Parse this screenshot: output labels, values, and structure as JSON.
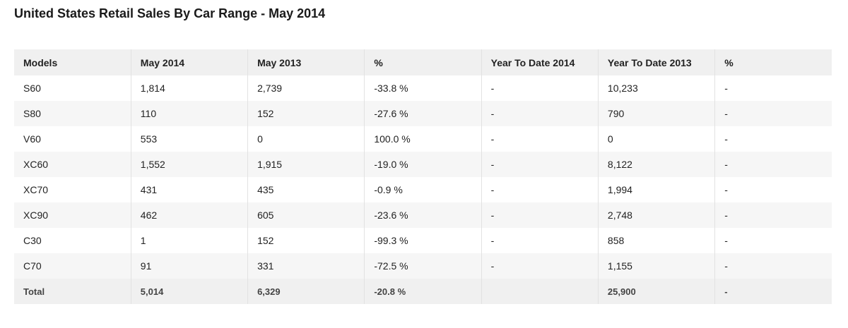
{
  "header": {
    "title": "United States Retail Sales By Car Range - May 2014"
  },
  "table": {
    "columns": [
      "Models",
      "May 2014",
      "May 2013",
      "%",
      "Year To Date 2014",
      "Year To Date 2013",
      "%"
    ],
    "rows": [
      [
        "S60",
        "1,814",
        "2,739",
        "-33.8 %",
        "-",
        "10,233",
        "-"
      ],
      [
        "S80",
        "110",
        "152",
        "-27.6 %",
        "-",
        "790",
        "-"
      ],
      [
        "V60",
        "553",
        "0",
        "100.0 %",
        "-",
        "0",
        "-"
      ],
      [
        "XC60",
        "1,552",
        "1,915",
        "-19.0 %",
        "-",
        "8,122",
        "-"
      ],
      [
        "XC70",
        "431",
        "435",
        "-0.9 %",
        "-",
        "1,994",
        "-"
      ],
      [
        "XC90",
        "462",
        "605",
        "-23.6 %",
        "-",
        "2,748",
        "-"
      ],
      [
        "C30",
        "1",
        "152",
        "-99.3 %",
        "-",
        "858",
        "-"
      ],
      [
        "C70",
        "91",
        "331",
        "-72.5 %",
        "-",
        "1,155",
        "-"
      ]
    ],
    "total": [
      "Total",
      "5,014",
      "6,329",
      "-20.8 %",
      "",
      "25,900",
      "-"
    ]
  }
}
